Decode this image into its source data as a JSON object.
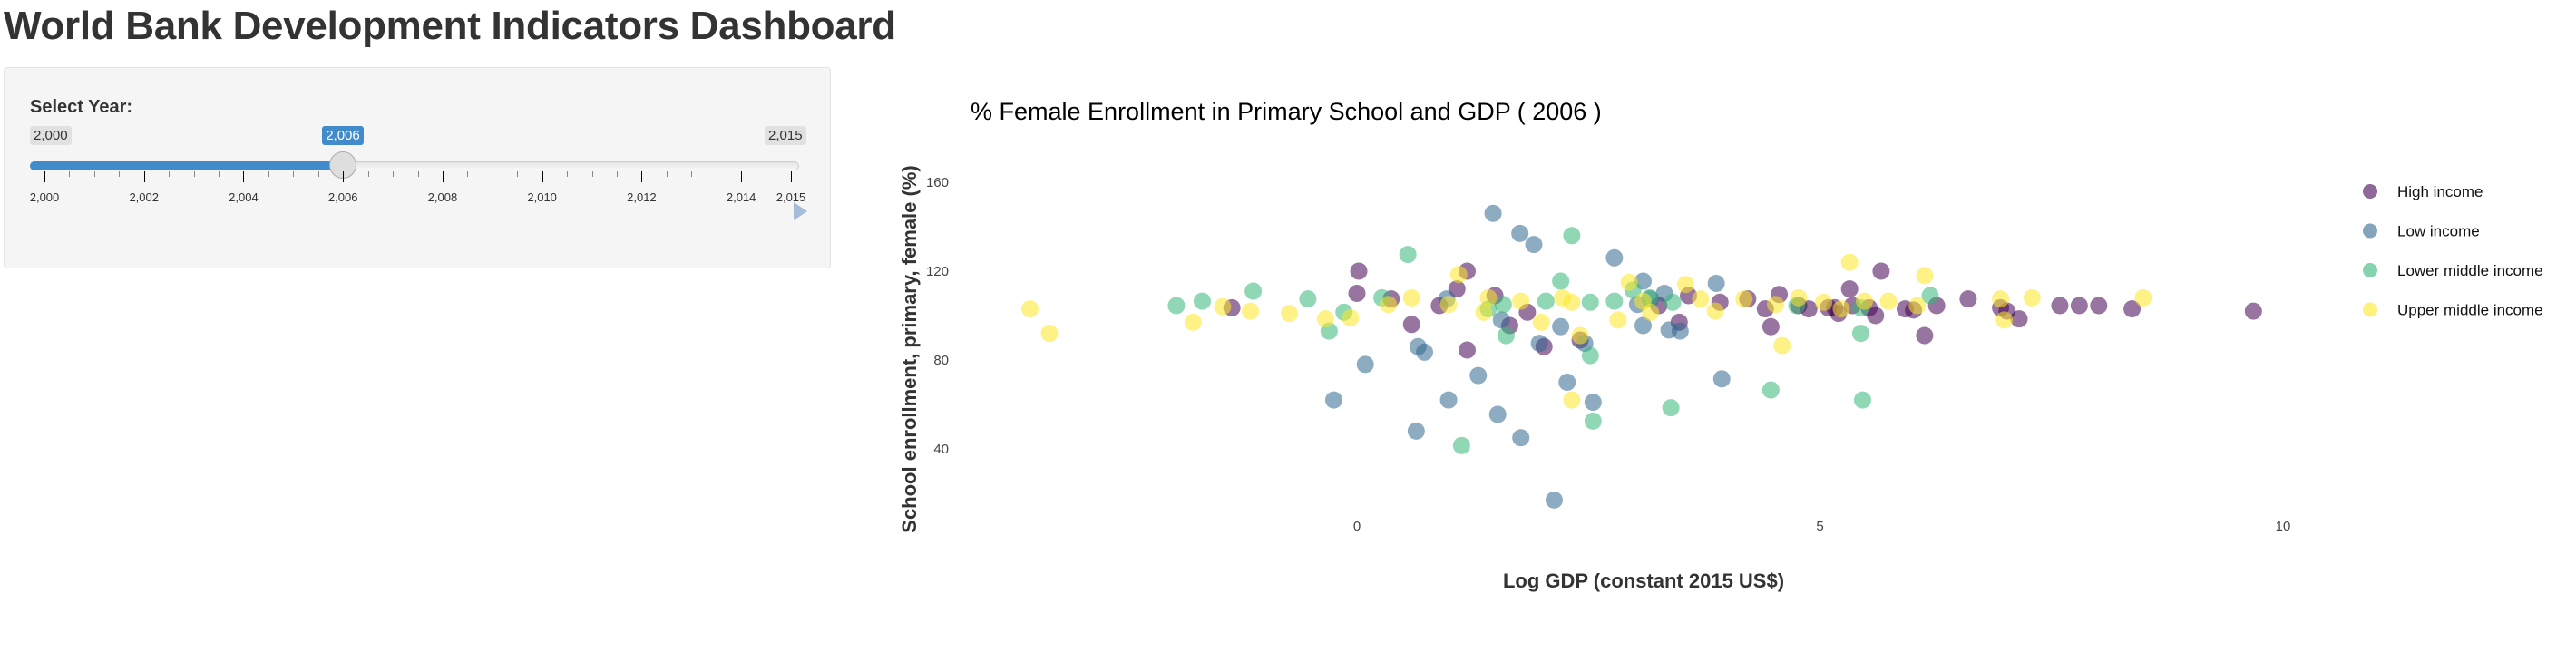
{
  "page": {
    "title": "World Bank Development Indicators Dashboard"
  },
  "slider": {
    "label": "Select Year:",
    "min": 2000,
    "max": 2015,
    "value": 2006,
    "min_label": "2,000",
    "max_label": "2,015",
    "value_label": "2,006",
    "tick_labels": [
      {
        "year": 2000,
        "label": "2,000"
      },
      {
        "year": 2002,
        "label": "2,002"
      },
      {
        "year": 2004,
        "label": "2,004"
      },
      {
        "year": 2006,
        "label": "2,006"
      },
      {
        "year": 2008,
        "label": "2,008"
      },
      {
        "year": 2010,
        "label": "2,010"
      },
      {
        "year": 2012,
        "label": "2,012"
      },
      {
        "year": 2014,
        "label": "2,014"
      },
      {
        "year": 2015,
        "label": "2,015"
      }
    ],
    "play_icon": "play-icon"
  },
  "chart_data": {
    "type": "scatter",
    "title": "% Female Enrollment in Primary School and GDP ( 2006 )",
    "xlabel": "Log GDP (constant 2015 US$)",
    "ylabel": "School enrollment, primary, female (%)",
    "xlim": [
      -4,
      11
    ],
    "ylim": [
      8,
      168
    ],
    "xticks": [
      0,
      5,
      10
    ],
    "yticks": [
      40,
      80,
      120,
      160
    ],
    "grid": false,
    "legend_position": "right",
    "series": [
      {
        "name": "High income",
        "color": "#440154",
        "points": [
          [
            -1.35,
            103.5
          ],
          [
            0.02,
            120
          ],
          [
            0,
            110
          ],
          [
            0.37,
            107.5
          ],
          [
            0.59,
            96
          ],
          [
            0.89,
            104.5
          ],
          [
            1.19,
            120
          ],
          [
            1.08,
            112
          ],
          [
            1.19,
            84.5
          ],
          [
            1.49,
            109
          ],
          [
            1.65,
            95.5
          ],
          [
            2.02,
            86
          ],
          [
            1.84,
            101.5
          ],
          [
            2.41,
            89
          ],
          [
            3.48,
            97
          ],
          [
            3.26,
            104.5
          ],
          [
            3.58,
            109
          ],
          [
            3.92,
            106
          ],
          [
            4.22,
            107.5
          ],
          [
            4.41,
            103
          ],
          [
            4.47,
            95
          ],
          [
            4.56,
            109.5
          ],
          [
            4.77,
            104.5
          ],
          [
            4.88,
            103
          ],
          [
            5.09,
            103.5
          ],
          [
            5.16,
            103.5
          ],
          [
            5.2,
            101
          ],
          [
            5.32,
            112
          ],
          [
            5.35,
            104.5
          ],
          [
            5.53,
            103.5
          ],
          [
            5.66,
            120
          ],
          [
            5.6,
            100
          ],
          [
            5.92,
            103
          ],
          [
            6.01,
            102.5
          ],
          [
            6.13,
            91
          ],
          [
            6.26,
            104.5
          ],
          [
            6.6,
            107.5
          ],
          [
            6.95,
            103.5
          ],
          [
            7.02,
            102
          ],
          [
            7.15,
            98.5
          ],
          [
            7.59,
            104.5
          ],
          [
            7.8,
            104.5
          ],
          [
            8.01,
            104.5
          ],
          [
            8.37,
            103
          ],
          [
            9.68,
            102
          ]
        ]
      },
      {
        "name": "Low income",
        "color": "#31688e",
        "points": [
          [
            -0.25,
            62
          ],
          [
            0.09,
            78
          ],
          [
            0.64,
            48
          ],
          [
            0.66,
            86
          ],
          [
            0.73,
            83.5
          ],
          [
            0.99,
            62
          ],
          [
            0.97,
            107.5
          ],
          [
            1.47,
            146
          ],
          [
            1.56,
            98
          ],
          [
            1.76,
            137
          ],
          [
            1.31,
            73
          ],
          [
            1.52,
            55.5
          ],
          [
            1.77,
            45
          ],
          [
            1.91,
            132
          ],
          [
            1.97,
            87.5
          ],
          [
            2.13,
            17
          ],
          [
            2.2,
            95
          ],
          [
            2.27,
            70
          ],
          [
            2.46,
            87.5
          ],
          [
            2.55,
            61
          ],
          [
            2.78,
            126
          ],
          [
            3.03,
            105
          ],
          [
            3.09,
            115.5
          ],
          [
            3.32,
            110
          ],
          [
            3.37,
            93.5
          ],
          [
            3.88,
            114.5
          ],
          [
            3.49,
            93
          ],
          [
            3.94,
            71.5
          ],
          [
            3.17,
            107.5
          ],
          [
            3.09,
            95.5
          ]
        ]
      },
      {
        "name": "Lower middle income",
        "color": "#35b779",
        "points": [
          [
            -1.95,
            104.5
          ],
          [
            -1.67,
            106.5
          ],
          [
            -1.12,
            111
          ],
          [
            -0.53,
            107.5
          ],
          [
            -0.3,
            93
          ],
          [
            -0.14,
            101.5
          ],
          [
            0.27,
            108
          ],
          [
            0.55,
            127.5
          ],
          [
            1.13,
            41.5
          ],
          [
            1.42,
            103
          ],
          [
            1.58,
            105
          ],
          [
            1.61,
            91
          ],
          [
            2.04,
            106.5
          ],
          [
            2.2,
            115.5
          ],
          [
            2.32,
            136
          ],
          [
            2.52,
            82
          ],
          [
            2.55,
            52.5
          ],
          [
            2.52,
            106
          ],
          [
            2.78,
            106.5
          ],
          [
            2.98,
            111.5
          ],
          [
            3.16,
            108
          ],
          [
            3.39,
            58.5
          ],
          [
            4.47,
            66.5
          ],
          [
            4.75,
            104.5
          ],
          [
            5.44,
            103.5
          ],
          [
            5.46,
            62
          ],
          [
            5.44,
            92
          ],
          [
            6.19,
            109
          ],
          [
            3.41,
            106
          ]
        ]
      },
      {
        "name": "Upper middle income",
        "color": "#fde725",
        "points": [
          [
            -3.53,
            103
          ],
          [
            -3.32,
            92
          ],
          [
            -1.77,
            97
          ],
          [
            -1.45,
            104
          ],
          [
            -1.15,
            102
          ],
          [
            -0.73,
            101
          ],
          [
            -0.34,
            98.5
          ],
          [
            -0.07,
            99
          ],
          [
            0.34,
            105
          ],
          [
            0.59,
            108
          ],
          [
            1.1,
            118.5
          ],
          [
            0.99,
            105
          ],
          [
            1.37,
            101.5
          ],
          [
            1.42,
            108
          ],
          [
            1.77,
            106.5
          ],
          [
            1.99,
            97
          ],
          [
            2.22,
            108
          ],
          [
            2.32,
            106
          ],
          [
            2.32,
            62
          ],
          [
            2.41,
            91
          ],
          [
            2.82,
            98
          ],
          [
            2.94,
            115
          ],
          [
            3.09,
            106.5
          ],
          [
            3.17,
            101.5
          ],
          [
            3.55,
            114
          ],
          [
            3.71,
            107.5
          ],
          [
            3.87,
            102
          ],
          [
            4.18,
            107.5
          ],
          [
            4.52,
            105
          ],
          [
            4.59,
            86.5
          ],
          [
            4.77,
            108
          ],
          [
            5.04,
            106
          ],
          [
            5.23,
            103
          ],
          [
            5.32,
            124
          ],
          [
            5.48,
            106.5
          ],
          [
            5.74,
            106.5
          ],
          [
            6.05,
            104.5
          ],
          [
            6.13,
            118
          ],
          [
            6.95,
            107.5
          ],
          [
            6.99,
            98
          ],
          [
            7.29,
            108
          ],
          [
            8.49,
            108
          ]
        ]
      }
    ]
  }
}
